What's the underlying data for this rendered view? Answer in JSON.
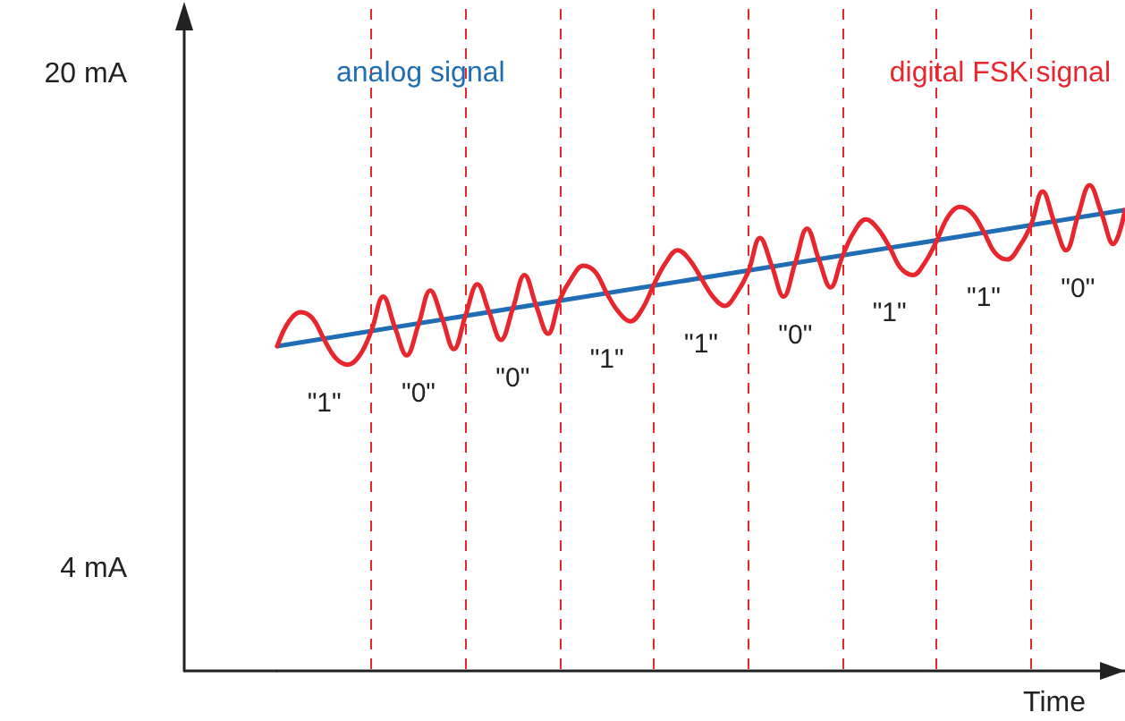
{
  "chart_data": {
    "type": "line",
    "xlabel": "Time",
    "categories": [
      null,
      null,
      null,
      null,
      null,
      null,
      null,
      null,
      null,
      null,
      null,
      null,
      null,
      null,
      null,
      null,
      null,
      null,
      null,
      null,
      null,
      null,
      null,
      null,
      null,
      null,
      null,
      null,
      null,
      null,
      null,
      null,
      null,
      null,
      null,
      null,
      null,
      null,
      null,
      null,
      null,
      null,
      null,
      null,
      null,
      null,
      null,
      null,
      null,
      null,
      null,
      null,
      null,
      null,
      null,
      null,
      null,
      null,
      null,
      null,
      null,
      null,
      null,
      null,
      null,
      null,
      null,
      null,
      null,
      null,
      null,
      null,
      null
    ],
    "series": [
      {
        "name": "analog signal",
        "color": "#1f6db5",
        "values": [
          11.2,
          null,
          null,
          null,
          null,
          null,
          null,
          null,
          null,
          null,
          null,
          null,
          null,
          null,
          null,
          null,
          null,
          null,
          null,
          null,
          null,
          null,
          null,
          null,
          null,
          null,
          null,
          null,
          null,
          null,
          null,
          null,
          null,
          null,
          null,
          null,
          null,
          null,
          null,
          null,
          null,
          null,
          null,
          null,
          null,
          null,
          null,
          null,
          null,
          null,
          null,
          null,
          null,
          null,
          null,
          null,
          null,
          null,
          null,
          null,
          null,
          null,
          null,
          null,
          null,
          null,
          null,
          null,
          null,
          null,
          null,
          null,
          15.6
        ]
      },
      {
        "name": "digital FSK signal",
        "color": "#e8262e",
        "values": [
          11.2,
          12.0,
          12.3,
          12.1,
          11.4,
          10.8,
          10.6,
          10.9,
          11.7,
          12.8,
          11.8,
          10.9,
          11.9,
          13.0,
          12.1,
          11.1,
          12.2,
          13.2,
          12.3,
          11.4,
          12.4,
          13.5,
          12.5,
          11.6,
          12.7,
          13.4,
          13.8,
          13.6,
          12.9,
          12.3,
          12.0,
          12.4,
          13.2,
          13.9,
          14.3,
          14.0,
          13.4,
          12.8,
          12.5,
          12.9,
          13.6,
          14.7,
          13.8,
          12.8,
          13.9,
          15.0,
          14.0,
          13.1,
          14.1,
          14.9,
          15.3,
          15.0,
          14.4,
          13.7,
          13.5,
          13.9,
          14.6,
          15.4,
          15.7,
          15.5,
          14.9,
          14.2,
          14.0,
          14.4,
          15.1,
          16.2,
          15.2,
          14.3,
          15.4,
          16.4,
          15.5,
          14.5,
          15.6
        ]
      }
    ],
    "ylim": [
      0.7,
      22.1
    ],
    "yticks": [
      {
        "value": 4,
        "label": "4 mA"
      },
      {
        "value": 20,
        "label": "20 mA"
      }
    ],
    "tick_labels": "y",
    "grid": "x",
    "line_style": "solid",
    "legend": false,
    "annotations": [
      "\"1\"",
      "\"0\"",
      "\"0\"",
      "\"1\"",
      "\"1\"",
      "\"0\"",
      "\"1\"",
      "\"1\"",
      "\"0\""
    ]
  }
}
